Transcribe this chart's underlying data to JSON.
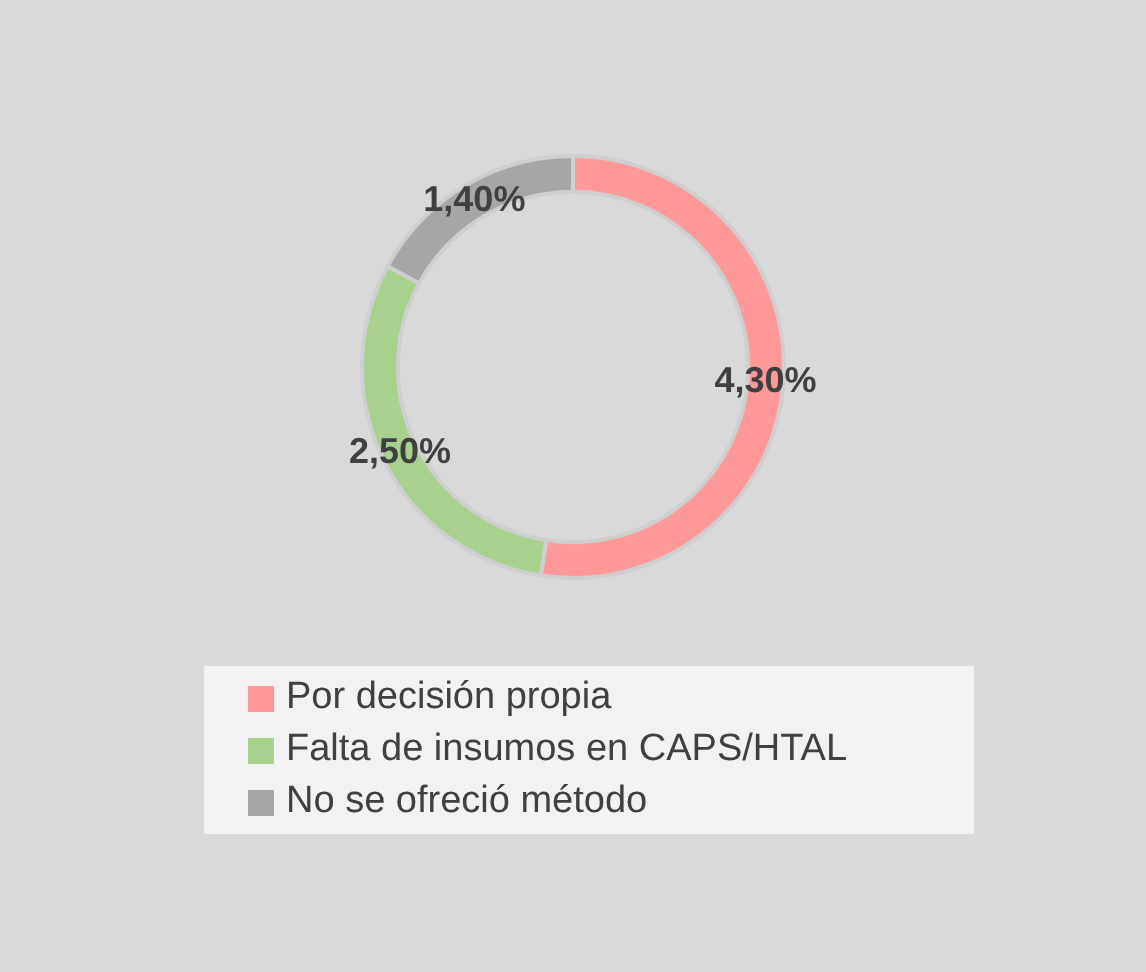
{
  "chart_data": {
    "type": "donut",
    "categories": [
      "Por decisión propia",
      "Falta de insumos en CAPS/HTAL",
      "No se ofreció método"
    ],
    "values": [
      4.3,
      2.5,
      1.4
    ],
    "colors": [
      "#ff9999",
      "#a9d18e",
      "#a6a6a6"
    ],
    "value_labels": [
      "4,30%",
      "2,50%",
      "1,40%"
    ],
    "legend": "bottom"
  }
}
